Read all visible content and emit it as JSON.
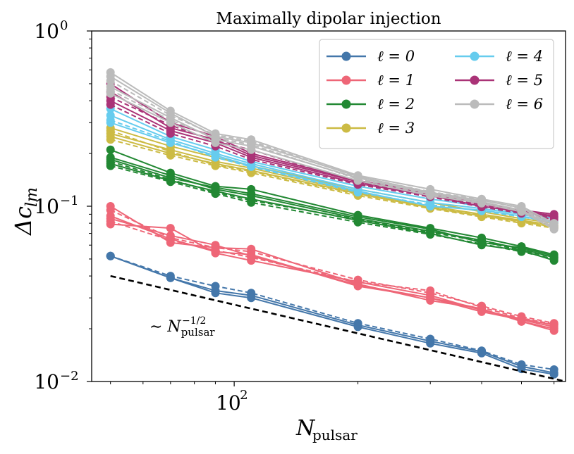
{
  "chart_data": {
    "type": "line",
    "title": "Maximally dipolar injection",
    "xlabel": "N_pulsar",
    "ylabel": "Δc_lm",
    "xscale": "log",
    "yscale": "log",
    "xlim": [
      45,
      640
    ],
    "ylim": [
      0.01,
      1.0
    ],
    "y_ticks": [
      {
        "base": "10",
        "exp": "−2",
        "value": 0.01
      },
      {
        "base": "10",
        "exp": "−1",
        "value": 0.1
      },
      {
        "base": "10",
        "exp": "0",
        "value": 1.0
      }
    ],
    "x_ticks": [
      {
        "base": "10",
        "exp": "2",
        "value": 100
      }
    ],
    "x": [
      50,
      70,
      90,
      110,
      200,
      300,
      400,
      500,
      600
    ],
    "legend_position": "top-right",
    "series": [
      {
        "name": "ℓ = 0",
        "l": "0",
        "color": "#4477aa",
        "lines": [
          {
            "style": "solid",
            "values": [
              0.052,
              0.039,
              0.032,
              0.03,
              0.0205,
              0.0165,
              0.0145,
              0.0118,
              0.011
            ]
          },
          {
            "style": "solid",
            "values": [
              0.052,
              0.039,
              0.033,
              0.031,
              0.021,
              0.017,
              0.0148,
              0.0122,
              0.0112
            ]
          },
          {
            "style": "dashed",
            "values": [
              0.052,
              0.04,
              0.035,
              0.032,
              0.0215,
              0.0175,
              0.015,
              0.0125,
              0.0117
            ]
          }
        ]
      },
      {
        "name": "ℓ = 1",
        "l": "1",
        "color": "#ee6677",
        "lines": [
          {
            "style": "solid",
            "values": [
              0.1,
              0.062,
              0.058,
              0.057,
              0.036,
              0.029,
              0.026,
              0.022,
              0.02
            ]
          },
          {
            "style": "solid",
            "values": [
              0.088,
              0.065,
              0.055,
              0.053,
              0.035,
              0.03,
              0.025,
              0.0225,
              0.0205
            ]
          },
          {
            "style": "solid",
            "values": [
              0.079,
              0.075,
              0.054,
              0.049,
              0.037,
              0.031,
              0.0255,
              0.0228,
              0.021
            ]
          },
          {
            "style": "solid",
            "values": [
              0.085,
              0.068,
              0.06,
              0.052,
              0.0355,
              0.03,
              0.026,
              0.022,
              0.0195
            ]
          },
          {
            "style": "dashed",
            "values": [
              0.095,
              0.066,
              0.058,
              0.055,
              0.038,
              0.032,
              0.027,
              0.0235,
              0.0215
            ]
          },
          {
            "style": "dashed",
            "values": [
              0.082,
              0.064,
              0.056,
              0.051,
              0.037,
              0.033,
              0.0265,
              0.023,
              0.0212
            ]
          }
        ]
      },
      {
        "name": "ℓ = 2",
        "l": "2",
        "color": "#228833",
        "lines": [
          {
            "style": "solid",
            "values": [
              0.21,
              0.155,
              0.13,
              0.125,
              0.089,
              0.075,
              0.066,
              0.059,
              0.053
            ]
          },
          {
            "style": "solid",
            "values": [
              0.19,
              0.15,
              0.125,
              0.115,
              0.085,
              0.072,
              0.064,
              0.057,
              0.051
            ]
          },
          {
            "style": "solid",
            "values": [
              0.175,
              0.14,
              0.122,
              0.11,
              0.083,
              0.07,
              0.06,
              0.056,
              0.049
            ]
          },
          {
            "style": "solid",
            "values": [
              0.185,
              0.145,
              0.128,
              0.118,
              0.087,
              0.074,
              0.062,
              0.058,
              0.052
            ]
          },
          {
            "style": "dashed",
            "values": [
              0.17,
              0.138,
              0.118,
              0.105,
              0.081,
              0.069,
              0.061,
              0.055,
              0.05
            ]
          },
          {
            "style": "dashed",
            "values": [
              0.18,
              0.142,
              0.12,
              0.108,
              0.084,
              0.071,
              0.063,
              0.056,
              0.051
            ]
          }
        ]
      },
      {
        "name": "ℓ = 3",
        "l": "3",
        "color": "#ccbb44",
        "lines": [
          {
            "style": "solid",
            "values": [
              0.28,
              0.22,
              0.19,
              0.17,
              0.125,
              0.105,
              0.093,
              0.085,
              0.08
            ]
          },
          {
            "style": "solid",
            "values": [
              0.26,
              0.21,
              0.18,
              0.165,
              0.12,
              0.1,
              0.09,
              0.083,
              0.078
            ]
          },
          {
            "style": "solid",
            "values": [
              0.25,
              0.2,
              0.175,
              0.16,
              0.118,
              0.098,
              0.088,
              0.082,
              0.076
            ]
          },
          {
            "style": "dashed",
            "values": [
              0.24,
              0.195,
              0.17,
              0.155,
              0.115,
              0.097,
              0.087,
              0.08,
              0.075
            ]
          },
          {
            "style": "dashed",
            "values": [
              0.27,
              0.205,
              0.172,
              0.158,
              0.117,
              0.099,
              0.089,
              0.081,
              0.077
            ]
          }
        ]
      },
      {
        "name": "ℓ = 4",
        "l": "4",
        "color": "#66ccee",
        "lines": [
          {
            "style": "solid",
            "values": [
              0.36,
              0.25,
              0.21,
              0.18,
              0.13,
              0.11,
              0.1,
              0.092,
              0.085
            ]
          },
          {
            "style": "solid",
            "values": [
              0.33,
              0.24,
              0.2,
              0.175,
              0.125,
              0.105,
              0.097,
              0.09,
              0.082
            ]
          },
          {
            "style": "solid",
            "values": [
              0.3,
              0.23,
              0.195,
              0.17,
              0.122,
              0.1,
              0.095,
              0.088,
              0.08
            ]
          },
          {
            "style": "dashed",
            "values": [
              0.31,
              0.235,
              0.19,
              0.168,
              0.12,
              0.102,
              0.094,
              0.087,
              0.081
            ]
          }
        ]
      },
      {
        "name": "ℓ = 5",
        "l": "5",
        "color": "#aa3377",
        "lines": [
          {
            "style": "solid",
            "values": [
              0.5,
              0.3,
              0.25,
              0.2,
              0.14,
              0.12,
              0.105,
              0.095,
              0.09
            ]
          },
          {
            "style": "solid",
            "values": [
              0.45,
              0.28,
              0.24,
              0.195,
              0.138,
              0.118,
              0.103,
              0.094,
              0.088
            ]
          },
          {
            "style": "solid",
            "values": [
              0.4,
              0.27,
              0.23,
              0.19,
              0.135,
              0.115,
              0.1,
              0.093,
              0.087
            ]
          },
          {
            "style": "dashed",
            "values": [
              0.42,
              0.29,
              0.235,
              0.21,
              0.137,
              0.116,
              0.102,
              0.092,
              0.086
            ]
          },
          {
            "style": "dashed",
            "values": [
              0.38,
              0.26,
              0.22,
              0.185,
              0.133,
              0.113,
              0.099,
              0.091,
              0.084
            ]
          }
        ]
      },
      {
        "name": "ℓ = 6",
        "l": "6",
        "color": "#bbbbbb",
        "lines": [
          {
            "style": "solid",
            "values": [
              0.58,
              0.35,
              0.26,
              0.24,
              0.15,
              0.125,
              0.11,
              0.1,
              0.08
            ]
          },
          {
            "style": "solid",
            "values": [
              0.55,
              0.34,
              0.25,
              0.23,
              0.148,
              0.12,
              0.108,
              0.098,
              0.078
            ]
          },
          {
            "style": "solid",
            "values": [
              0.48,
              0.32,
              0.24,
              0.22,
              0.145,
              0.118,
              0.106,
              0.095,
              0.076
            ]
          },
          {
            "style": "solid",
            "values": [
              0.44,
              0.3,
              0.23,
              0.21,
              0.14,
              0.115,
              0.104,
              0.093,
              0.074
            ]
          },
          {
            "style": "dashed",
            "values": [
              0.52,
              0.33,
              0.255,
              0.235,
              0.147,
              0.121,
              0.109,
              0.097,
              0.077
            ]
          },
          {
            "style": "dashed",
            "values": [
              0.46,
              0.31,
              0.245,
              0.225,
              0.143,
              0.117,
              0.105,
              0.094,
              0.075
            ]
          }
        ]
      }
    ],
    "reference_line": {
      "label_prefix": "∼ N",
      "label_sub": "pulsar",
      "label_sup": "−1/2",
      "color": "#000000",
      "style": "dashed",
      "x": [
        50,
        640
      ],
      "values": [
        0.04,
        0.01
      ]
    }
  }
}
